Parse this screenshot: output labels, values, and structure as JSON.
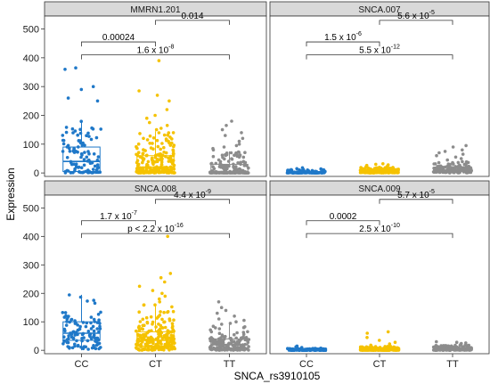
{
  "figure": {
    "xlabel": "SNCA_rs3910105",
    "ylabel": "Expression"
  },
  "chart_data": {
    "type": "box",
    "categories": [
      "CC",
      "CT",
      "TT"
    ],
    "ylim": [
      -12,
      545
    ],
    "yticks": [
      0,
      100,
      200,
      300,
      400,
      500
    ],
    "legend": "none",
    "grid": false,
    "group_colors": {
      "CC": "#1f78c8",
      "CT": "#f5c200",
      "TT": "#8c8c8c"
    },
    "panels": [
      {
        "title": "MMRN1.201",
        "boxes": [
          {
            "group": "CC",
            "q1": 5,
            "median": 40,
            "q3": 90,
            "low": 0,
            "high": 180,
            "n": 110,
            "outliers": [
              300,
              290,
              365,
              360,
              260,
              250
            ]
          },
          {
            "group": "CT",
            "q1": 5,
            "median": 20,
            "q3": 60,
            "low": 0,
            "high": 145,
            "n": 230,
            "outliers": [
              390,
              285,
              270,
              250,
              220,
              200,
              190,
              175,
              165,
              155,
              150
            ]
          },
          {
            "group": "TT",
            "q1": 0,
            "median": 5,
            "q3": 30,
            "low": 0,
            "high": 75,
            "n": 170,
            "outliers": [
              180,
              165,
              150,
              140,
              130,
              120,
              110,
              100,
              95,
              90,
              85,
              80
            ]
          }
        ],
        "annotations": [
          {
            "base": "0.014",
            "exp": "",
            "from": "CT",
            "to": "TT",
            "y": 530
          },
          {
            "base": "0.00024",
            "exp": "",
            "from": "CC",
            "to": "CT",
            "y": 455
          },
          {
            "base": "1.6 x 10",
            "exp": "-8",
            "from": "CC",
            "to": "TT",
            "y": 410
          }
        ]
      },
      {
        "title": "SNCA.007",
        "boxes": [
          {
            "group": "CC",
            "q1": 0,
            "median": 2,
            "q3": 5,
            "low": 0,
            "high": 12,
            "n": 110,
            "outliers": [
              15,
              18,
              14
            ]
          },
          {
            "group": "CT",
            "q1": 2,
            "median": 5,
            "q3": 9,
            "low": 0,
            "high": 20,
            "n": 230,
            "outliers": [
              22,
              24,
              28,
              26,
              30,
              32
            ]
          },
          {
            "group": "TT",
            "q1": 5,
            "median": 10,
            "q3": 20,
            "low": 0,
            "high": 40,
            "n": 170,
            "outliers": [
              45,
              50,
              55,
              60,
              65,
              70,
              75,
              80,
              90,
              95
            ]
          }
        ],
        "annotations": [
          {
            "base": "5.6 x 10",
            "exp": "-5",
            "from": "CT",
            "to": "TT",
            "y": 530
          },
          {
            "base": "1.5 x 10",
            "exp": "-6",
            "from": "CC",
            "to": "CT",
            "y": 455
          },
          {
            "base": "5.5 x 10",
            "exp": "-12",
            "from": "CC",
            "to": "TT",
            "y": 410
          }
        ]
      },
      {
        "title": "SNCA.008",
        "boxes": [
          {
            "group": "CC",
            "q1": 35,
            "median": 60,
            "q3": 100,
            "low": 0,
            "high": 195,
            "n": 110,
            "outliers": []
          },
          {
            "group": "CT",
            "q1": 15,
            "median": 35,
            "q3": 65,
            "low": 0,
            "high": 160,
            "n": 230,
            "outliers": [
              400,
              270,
              255,
              240,
              225,
              210,
              200,
              190,
              180,
              170
            ]
          },
          {
            "group": "TT",
            "q1": 5,
            "median": 20,
            "q3": 40,
            "low": 0,
            "high": 95,
            "n": 170,
            "outliers": [
              170,
              150,
              140,
              130,
              120,
              110,
              105,
              100
            ]
          }
        ],
        "annotations": [
          {
            "base": "4.4 x 10",
            "exp": "-9",
            "from": "CT",
            "to": "TT",
            "y": 530
          },
          {
            "base": "1.7 x 10",
            "exp": "-7",
            "from": "CC",
            "to": "CT",
            "y": 455
          },
          {
            "base": "p < 2.2 x 10",
            "exp": "-16",
            "from": "CC",
            "to": "TT",
            "y": 410
          }
        ]
      },
      {
        "title": "SNCA.009",
        "boxes": [
          {
            "group": "CC",
            "q1": 0,
            "median": 2,
            "q3": 4,
            "low": 0,
            "high": 8,
            "n": 110,
            "outliers": [
              12,
              15,
              10
            ]
          },
          {
            "group": "CT",
            "q1": 1,
            "median": 3,
            "q3": 6,
            "low": 0,
            "high": 14,
            "n": 230,
            "outliers": [
              18,
              22,
              28,
              35,
              45,
              60,
              65
            ]
          },
          {
            "group": "TT",
            "q1": 2,
            "median": 5,
            "q3": 9,
            "low": 0,
            "high": 18,
            "n": 170,
            "outliers": [
              22,
              24,
              26,
              28,
              30
            ]
          }
        ],
        "annotations": [
          {
            "base": "5.7 x 10",
            "exp": "-5",
            "from": "CT",
            "to": "TT",
            "y": 530
          },
          {
            "base": "0.0002",
            "exp": "",
            "from": "CC",
            "to": "CT",
            "y": 455
          },
          {
            "base": "2.5 x 10",
            "exp": "-10",
            "from": "CC",
            "to": "TT",
            "y": 410
          }
        ]
      }
    ]
  }
}
